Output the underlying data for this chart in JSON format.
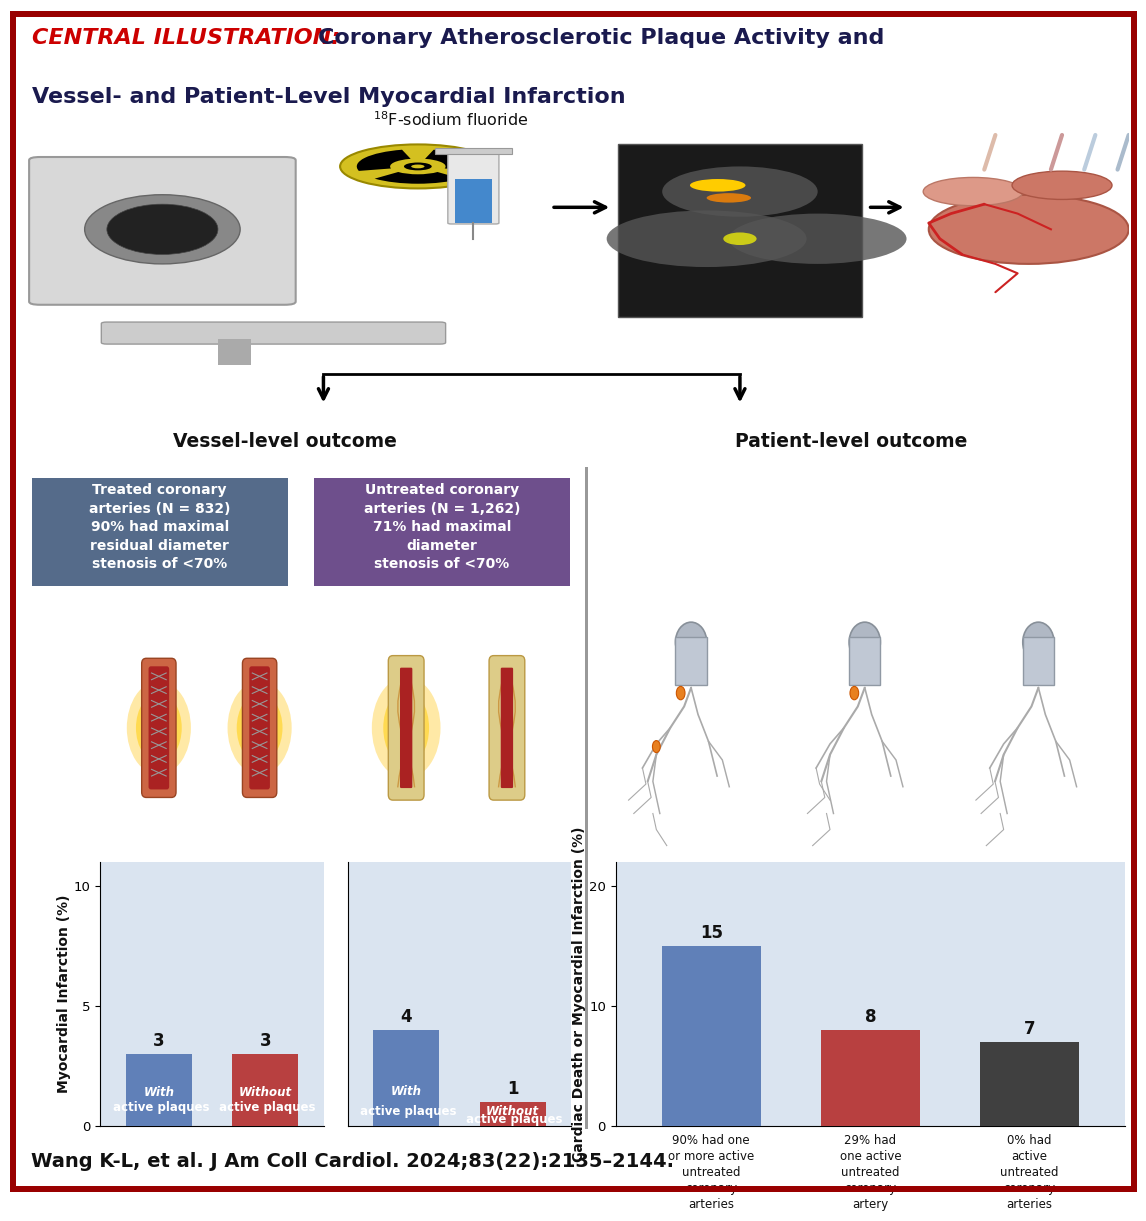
{
  "title_prefix": "CENTRAL ILLUSTRATION:",
  "title_main1": "Coronary Atherosclerotic Plaque Activity and",
  "title_main2": "Vessel- and Patient-Level Myocardial Infarction",
  "title_prefix_color": "#cc0000",
  "title_main_color": "#1a1a4e",
  "title_bg_color": "#cdd8e8",
  "outer_border_color": "#990000",
  "background_color": "#ffffff",
  "citation": "Wang K-L, et al. J Am Coll Cardiol. 2024;83(22):2135–2144.",
  "vessel_label": "Vessel-level outcome",
  "patient_label": "Patient-level outcome",
  "box1_text": "Treated coronary\narteries (N = 832)\n90% had maximal\nresidual diameter\nstenosis of <70%",
  "box1_color": "#556b8a",
  "box2_text": "Untreated coronary\narteries (N = 1,262)\n71% had maximal\ndiameter\nstenosis of <70%",
  "box2_color": "#6e4f8c",
  "chart1_bars": [
    {
      "label_italic": "With",
      "label_rest": " active\nplaques",
      "value": 3,
      "color": "#6080b8"
    },
    {
      "label_italic": "Without",
      "label_rest": " active\nplaques",
      "value": 3,
      "color": "#b84040"
    }
  ],
  "chart1_ylabel": "Myocardial Infarction (%)",
  "chart1_ylim": [
    0,
    11
  ],
  "chart1_yticks": [
    0,
    5,
    10
  ],
  "chart1_bg": "#dae4f0",
  "chart2_bars": [
    {
      "label_italic": "With",
      "label_rest": " active\nplaques",
      "value": 4,
      "color": "#6080b8"
    },
    {
      "label_italic": "Without",
      "label_rest": " active\nplaques",
      "value": 1,
      "color": "#b84040"
    }
  ],
  "chart2_ylim": [
    0,
    11
  ],
  "chart2_yticks": [
    0,
    5,
    10
  ],
  "chart2_bg": "#dae4f0",
  "chart3_bars": [
    {
      "label": "90% had one\nor more active\nuntreated\ncoronary\narteries",
      "value": 15,
      "color": "#6080b8"
    },
    {
      "label": "29% had\none active\nuntreated\ncoronary\nartery",
      "value": 8,
      "color": "#b84040"
    },
    {
      "label": "0% had\nactive\nuntreated\ncoronary\narteries",
      "value": 7,
      "color": "#404040"
    }
  ],
  "chart3_ylabel": "Cardiac Death or Myocardial Infarction (%)",
  "chart3_ylim": [
    0,
    22
  ],
  "chart3_yticks": [
    0,
    10,
    20
  ],
  "chart3_bg": "#dae4f0",
  "divider_color": "#999999",
  "bar_number_color": "#111111",
  "fig_width": 11.45,
  "fig_height": 12.0,
  "dpi": 100
}
